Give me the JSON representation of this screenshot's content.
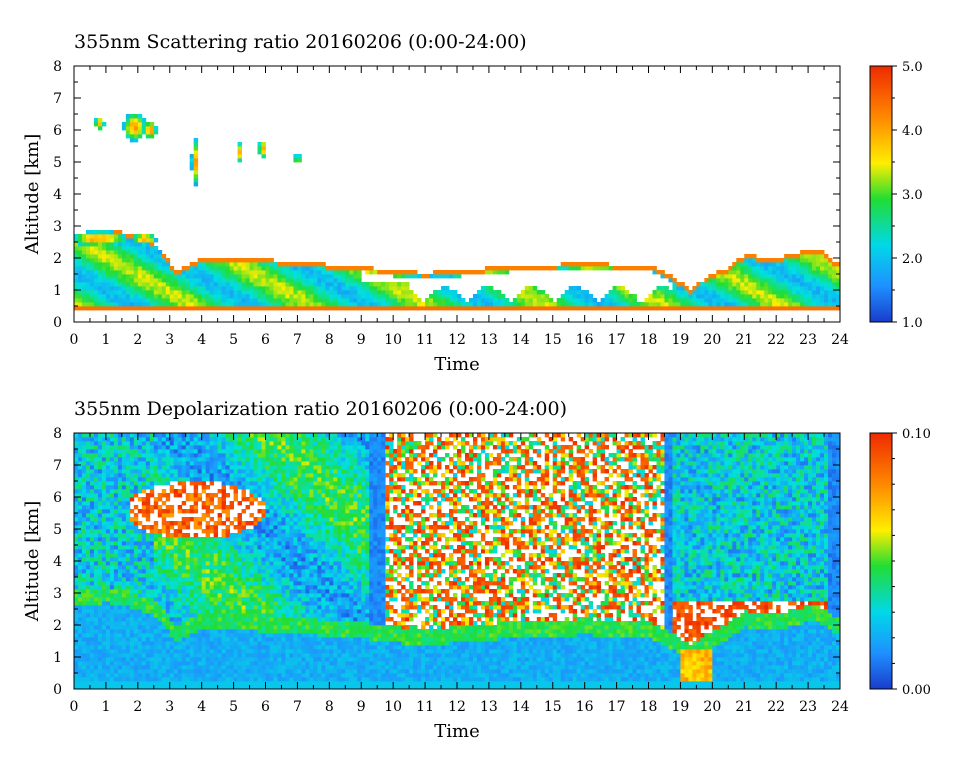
{
  "chart_data": [
    {
      "type": "heatmap",
      "title": "355nm Scattering ratio  20160206 (0:00-24:00)",
      "xlabel": "Time",
      "ylabel": "Altitude [km]",
      "xlim": [
        0,
        24
      ],
      "ylim": [
        0,
        8
      ],
      "x_ticks": [
        "0",
        "1",
        "2",
        "3",
        "4",
        "5",
        "6",
        "7",
        "8",
        "9",
        "10",
        "11",
        "12",
        "13",
        "14",
        "15",
        "16",
        "17",
        "18",
        "19",
        "20",
        "21",
        "22",
        "23",
        "24"
      ],
      "y_ticks": [
        "0",
        "1",
        "2",
        "3",
        "4",
        "5",
        "6",
        "7",
        "8"
      ],
      "colorbar": {
        "min": 1.0,
        "max": 5.0,
        "ticks": [
          "1.0",
          "2.0",
          "3.0",
          "4.0",
          "5.0"
        ]
      },
      "colors": [
        "#1a3ccc",
        "#1e90ff",
        "#00e0e0",
        "#22dd33",
        "#ffee00",
        "#ff8800",
        "#ee2a00"
      ]
    },
    {
      "type": "heatmap",
      "title": "355nm Depolarization ratio  20160206 (0:00-24:00)",
      "xlabel": "Time",
      "ylabel": "Altitude [km]",
      "xlim": [
        0,
        24
      ],
      "ylim": [
        0,
        8
      ],
      "x_ticks": [
        "0",
        "1",
        "2",
        "3",
        "4",
        "5",
        "6",
        "7",
        "8",
        "9",
        "10",
        "11",
        "12",
        "13",
        "14",
        "15",
        "16",
        "17",
        "18",
        "19",
        "20",
        "21",
        "22",
        "23",
        "24"
      ],
      "y_ticks": [
        "0",
        "1",
        "2",
        "3",
        "4",
        "5",
        "6",
        "7",
        "8"
      ],
      "colorbar": {
        "min": 0.0,
        "max": 0.1,
        "ticks": [
          "0.00",
          "0.10"
        ]
      },
      "colors": [
        "#1a3ccc",
        "#1e90ff",
        "#00e0e0",
        "#22dd33",
        "#ffee00",
        "#ff8800",
        "#ee2a00"
      ]
    }
  ]
}
